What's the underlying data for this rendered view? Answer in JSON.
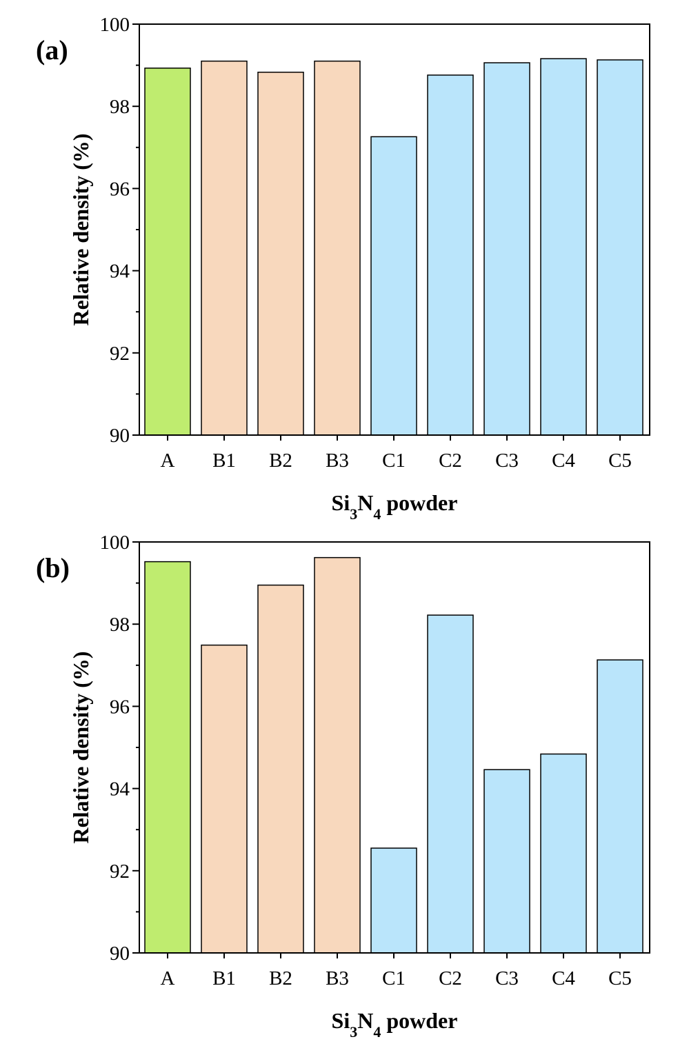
{
  "chart_data": [
    {
      "type": "bar",
      "panel_label": "(a)",
      "categories": [
        "A",
        "B1",
        "B2",
        "B3",
        "C1",
        "C2",
        "C3",
        "C4",
        "C5"
      ],
      "values": [
        98.93,
        99.1,
        98.83,
        99.1,
        97.26,
        98.76,
        99.06,
        99.16,
        99.13
      ],
      "bar_colors": [
        "#bfec6f",
        "#f8d8bd",
        "#f8d8bd",
        "#f8d8bd",
        "#bae5fb",
        "#bae5fb",
        "#bae5fb",
        "#bae5fb",
        "#bae5fb"
      ],
      "xlabel": {
        "main": "Si",
        "sub1": "3",
        "mid": "N",
        "sub2": "4",
        "rest": " powder"
      },
      "ylabel": "Relative density (%)",
      "ylim": [
        90,
        100
      ],
      "yticks": [
        "90",
        "92",
        "94",
        "96",
        "98",
        "100"
      ],
      "grid": false
    },
    {
      "type": "bar",
      "panel_label": "(b)",
      "categories": [
        "A",
        "B1",
        "B2",
        "B3",
        "C1",
        "C2",
        "C3",
        "C4",
        "C5"
      ],
      "values": [
        99.52,
        97.49,
        98.95,
        99.62,
        92.55,
        98.22,
        94.46,
        94.84,
        97.13
      ],
      "bar_colors": [
        "#bfec6f",
        "#f8d8bd",
        "#f8d8bd",
        "#f8d8bd",
        "#bae5fb",
        "#bae5fb",
        "#bae5fb",
        "#bae5fb",
        "#bae5fb"
      ],
      "xlabel": {
        "main": "Si",
        "sub1": "3",
        "mid": "N",
        "sub2": "4",
        "rest": " powder"
      },
      "ylabel": "Relative density (%)",
      "ylim": [
        90,
        100
      ],
      "yticks": [
        "90",
        "92",
        "94",
        "96",
        "98",
        "100"
      ],
      "grid": false
    }
  ]
}
